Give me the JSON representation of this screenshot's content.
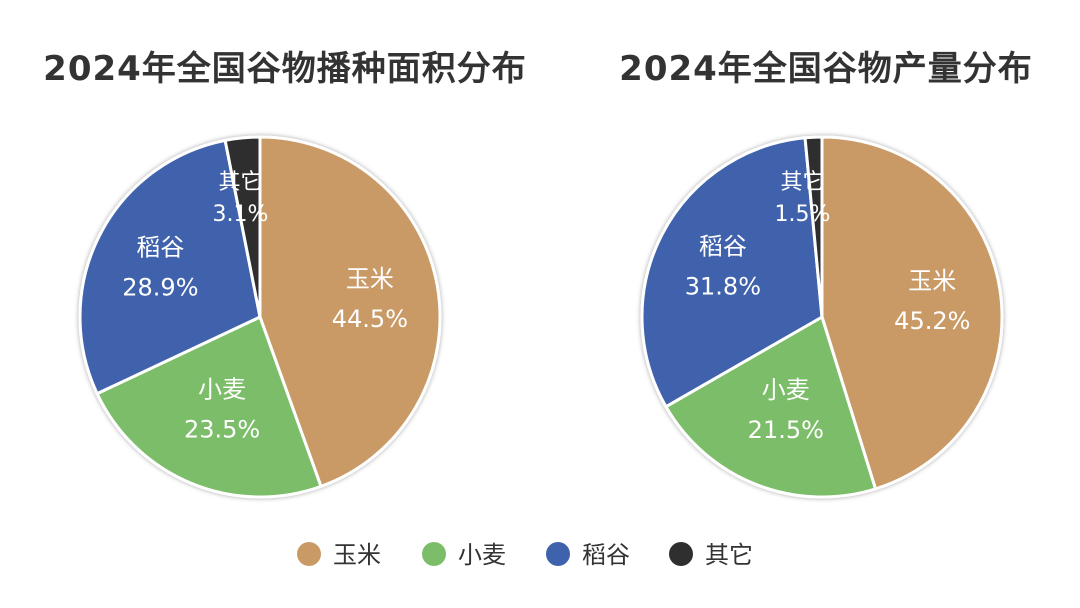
{
  "colors": {
    "玉米": "#c99a66",
    "小麦": "#7bbd69",
    "稻谷": "#3f62ac",
    "其它": "#2f2f2f"
  },
  "legend": {
    "items": [
      {
        "label": "玉米",
        "color": "#c99a66"
      },
      {
        "label": "小麦",
        "color": "#7bbd69"
      },
      {
        "label": "稻谷",
        "color": "#3f62ac"
      },
      {
        "label": "其它",
        "color": "#2f2f2f"
      }
    ]
  },
  "chart_data": [
    {
      "type": "pie",
      "title": "2024年全国谷物播种面积分布",
      "categories": [
        "玉米",
        "小麦",
        "稻谷",
        "其它"
      ],
      "values": [
        44.5,
        23.5,
        28.9,
        3.1
      ],
      "value_labels": [
        "44.5%",
        "23.5%",
        "28.9%",
        "3.1%"
      ],
      "start": "12 o'clock",
      "direction": "clockwise",
      "legend": "bottom-center"
    },
    {
      "type": "pie",
      "title": "2024年全国谷物产量分布",
      "categories": [
        "玉米",
        "小麦",
        "稻谷",
        "其它"
      ],
      "values": [
        45.2,
        21.5,
        31.8,
        1.5
      ],
      "value_labels": [
        "45.2%",
        "21.5%",
        "31.8%",
        "1.5%"
      ],
      "start": "12 o'clock",
      "direction": "clockwise",
      "legend": "bottom-center"
    }
  ]
}
